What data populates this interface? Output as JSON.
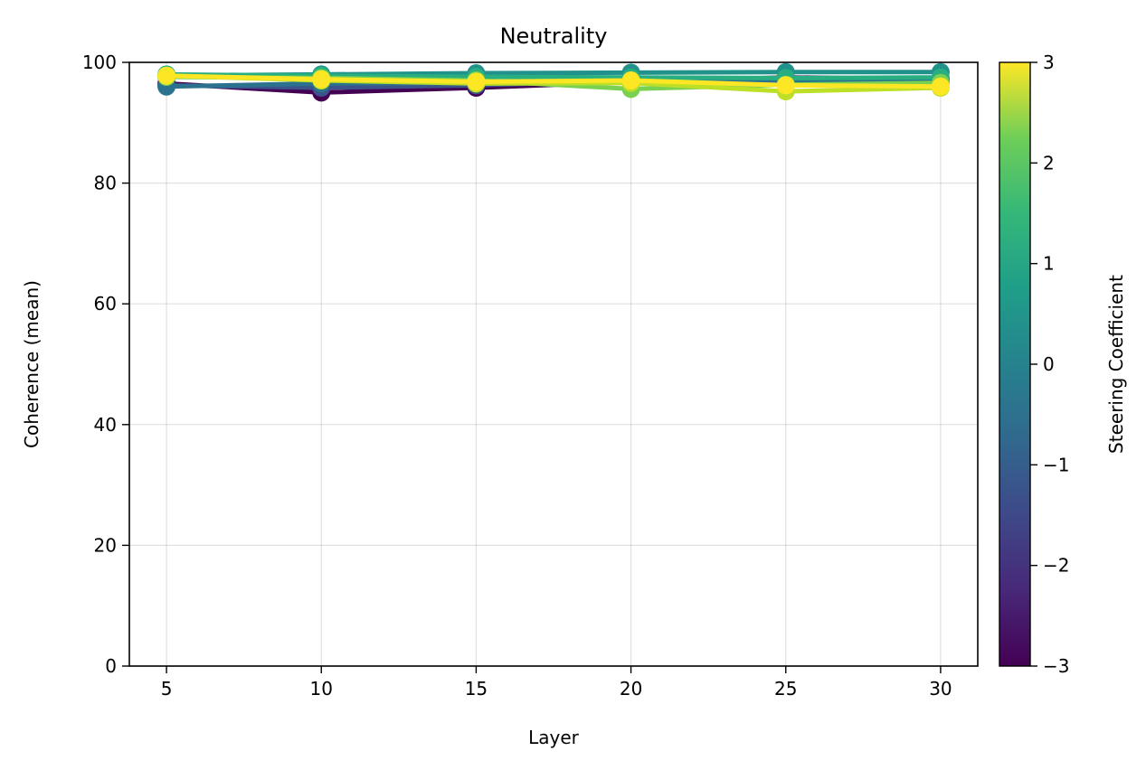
{
  "chart_data": {
    "type": "line",
    "title": "Neutrality",
    "xlabel": "Layer",
    "ylabel": "Coherence (mean)",
    "x": [
      5,
      10,
      15,
      20,
      25,
      30
    ],
    "xticks": [
      "5",
      "10",
      "15",
      "20",
      "25",
      "30"
    ],
    "yticks": [
      "0",
      "20",
      "40",
      "60",
      "80",
      "100"
    ],
    "xlim": [
      3.8,
      31.2
    ],
    "ylim": [
      0,
      100
    ],
    "grid": true,
    "colormap": "viridis",
    "colorbar": {
      "label": "Steering Coefficient",
      "range": [
        -3,
        3
      ],
      "ticks": [
        "−3",
        "−2",
        "−1",
        "0",
        "1",
        "2",
        "3"
      ]
    },
    "series": [
      {
        "coef": -3,
        "color": "#440154",
        "values": [
          96.5,
          95.0,
          95.8,
          96.8,
          97.5,
          97.2
        ]
      },
      {
        "coef": -2,
        "color": "#3b528b",
        "values": [
          96.2,
          95.8,
          96.2,
          97.0,
          97.2,
          97.0
        ]
      },
      {
        "coef": -1,
        "color": "#2c728e",
        "values": [
          96.0,
          96.5,
          96.6,
          97.2,
          97.0,
          96.8
        ]
      },
      {
        "coef": 0,
        "color": "#21918c",
        "values": [
          97.8,
          98.0,
          98.2,
          98.3,
          98.4,
          98.4
        ]
      },
      {
        "coef": 1,
        "color": "#28ae80",
        "values": [
          98.0,
          97.8,
          97.6,
          97.5,
          97.4,
          97.5
        ]
      },
      {
        "coef": 2,
        "color": "#7ad151",
        "values": [
          97.6,
          97.4,
          97.0,
          95.6,
          96.3,
          96.6
        ]
      },
      {
        "coef": 2.5,
        "color": "#bddf26",
        "values": [
          97.8,
          97.0,
          96.5,
          96.6,
          95.2,
          95.8
        ]
      },
      {
        "coef": 3,
        "color": "#fde725",
        "values": [
          97.8,
          97.2,
          96.8,
          97.0,
          96.2,
          96.0
        ]
      }
    ]
  }
}
